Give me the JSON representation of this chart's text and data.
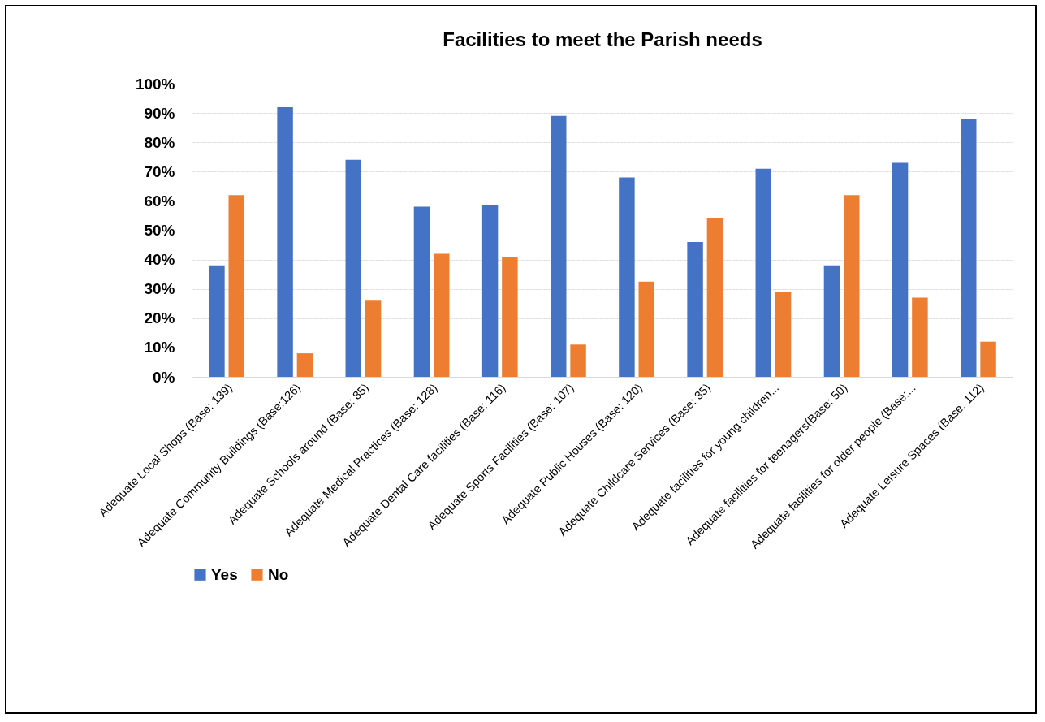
{
  "chart_data": {
    "type": "bar",
    "title": "Facilities to meet the Parish needs",
    "categories": [
      "Adequate Local Shops (Base: 139)",
      "Adequate Community Buildings (Base:126)",
      "Adequate Schools around (Base: 85)",
      "Adequate Medical Practices (Base: 128)",
      "Adequate Dental Care facilities (Base: 116)",
      "Adequate Sports Facilities (Base: 107)",
      "Adequate Public Houses (Base: 120)",
      "Adequate Childcare Services (Base: 35)",
      "Adequate facilities for young children...",
      "Adequate facilities for teenagers(Base: 50)",
      "Adequate facilities for older people (Base:...",
      "Adequate Leisure Spaces (Base: 112)"
    ],
    "series": [
      {
        "name": "Yes",
        "color": "#4472c4",
        "values": [
          38,
          92,
          74,
          58,
          58.5,
          89,
          68,
          46,
          71,
          38,
          73,
          88
        ]
      },
      {
        "name": "No",
        "color": "#ed7d31",
        "values": [
          62,
          8,
          26,
          42,
          41,
          11,
          32.5,
          54,
          29,
          62,
          27,
          12
        ]
      }
    ],
    "ylim": [
      0,
      100
    ],
    "yticks": [
      {
        "value": 0,
        "label": "0%"
      },
      {
        "value": 10,
        "label": "10%"
      },
      {
        "value": 20,
        "label": "20%"
      },
      {
        "value": 30,
        "label": "30%"
      },
      {
        "value": 40,
        "label": "40%"
      },
      {
        "value": 50,
        "label": "50%"
      },
      {
        "value": 60,
        "label": "60%"
      },
      {
        "value": 70,
        "label": "70%"
      },
      {
        "value": 80,
        "label": "80%"
      },
      {
        "value": 90,
        "label": "90%"
      },
      {
        "value": 100,
        "label": "100%"
      }
    ],
    "grid": "y",
    "legend": "bottom"
  }
}
